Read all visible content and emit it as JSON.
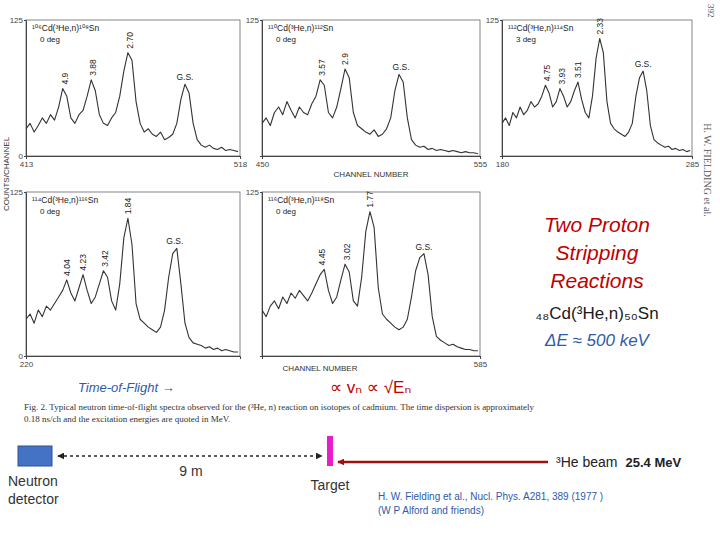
{
  "chart_data": [
    {
      "type": "line",
      "title": "¹⁰⁶Cd(³He,n)¹⁰⁸Sn",
      "subtitle": "0 deg",
      "color": "#333333",
      "x": [
        413,
        415,
        417,
        419,
        421,
        423,
        425,
        427,
        429,
        431,
        433,
        435,
        437,
        439,
        441,
        443,
        445,
        447,
        449,
        451,
        453,
        455,
        457,
        459,
        461,
        463,
        465,
        467,
        469,
        471,
        473,
        475,
        477,
        479,
        481,
        483,
        485,
        487,
        489,
        491,
        493,
        495,
        497,
        499,
        501,
        503,
        505,
        507,
        509,
        511,
        513,
        515,
        517
      ],
      "values": [
        25,
        30,
        22,
        28,
        35,
        30,
        38,
        33,
        45,
        62,
        55,
        35,
        30,
        38,
        42,
        55,
        70,
        60,
        38,
        30,
        28,
        35,
        40,
        55,
        78,
        95,
        88,
        50,
        30,
        22,
        25,
        20,
        18,
        22,
        15,
        17,
        20,
        30,
        52,
        66,
        58,
        30,
        15,
        10,
        8,
        10,
        7,
        6,
        8,
        5,
        6,
        5,
        4
      ],
      "xlim": [
        413,
        518
      ],
      "xticks": [
        413,
        518
      ],
      "ylim": [
        0,
        125
      ],
      "yticks": [
        0,
        125
      ],
      "annotations": [
        {
          "x": 432,
          "text": "4.9"
        },
        {
          "x": 446,
          "text": "3.88"
        },
        {
          "x": 464,
          "text": "2.70"
        },
        {
          "x": 491,
          "text": "G.S."
        }
      ]
    },
    {
      "type": "line",
      "title": "¹¹⁰Cd(³He,n)¹¹²Sn",
      "subtitle": "0 deg",
      "color": "#333333",
      "x": [
        450,
        452,
        454,
        456,
        458,
        460,
        462,
        464,
        466,
        468,
        470,
        472,
        474,
        476,
        478,
        480,
        482,
        484,
        486,
        488,
        490,
        492,
        494,
        496,
        498,
        500,
        502,
        504,
        506,
        508,
        510,
        512,
        514,
        516,
        518,
        520,
        522,
        524,
        526,
        528,
        530,
        532,
        534,
        536,
        538,
        540,
        542,
        544,
        546,
        548,
        550,
        552,
        554
      ],
      "values": [
        30,
        35,
        28,
        40,
        45,
        38,
        50,
        42,
        35,
        45,
        40,
        38,
        48,
        55,
        70,
        65,
        40,
        35,
        45,
        62,
        80,
        72,
        40,
        28,
        25,
        22,
        20,
        24,
        18,
        20,
        25,
        35,
        60,
        75,
        68,
        35,
        15,
        10,
        8,
        9,
        6,
        7,
        5,
        6,
        5,
        4,
        5,
        4,
        3,
        4,
        3,
        3,
        2
      ],
      "xlim": [
        450,
        555
      ],
      "xticks": [
        450,
        555
      ],
      "ylim": [
        0,
        125
      ],
      "yticks": [
        125
      ],
      "annotations": [
        {
          "x": 479,
          "text": "3.57"
        },
        {
          "x": 490,
          "text": "2.9"
        },
        {
          "x": 517,
          "text": "G.S."
        }
      ]
    },
    {
      "type": "line",
      "title": "¹¹²Cd(³He,n)¹¹⁴Sn",
      "subtitle": "3 deg",
      "color": "#333333",
      "x": [
        180,
        182,
        184,
        186,
        188,
        190,
        192,
        194,
        196,
        198,
        200,
        202,
        204,
        206,
        208,
        210,
        212,
        214,
        216,
        218,
        220,
        222,
        224,
        226,
        228,
        230,
        232,
        234,
        236,
        238,
        240,
        242,
        244,
        246,
        248,
        250,
        252,
        254,
        256,
        258,
        260,
        262,
        264,
        266,
        268,
        270,
        272,
        274,
        276,
        278,
        280,
        282,
        284
      ],
      "values": [
        30,
        35,
        28,
        40,
        35,
        45,
        38,
        42,
        50,
        45,
        48,
        55,
        65,
        58,
        45,
        50,
        62,
        55,
        45,
        50,
        60,
        68,
        52,
        40,
        35,
        55,
        90,
        108,
        95,
        50,
        30,
        25,
        22,
        20,
        18,
        22,
        30,
        55,
        72,
        78,
        60,
        28,
        15,
        12,
        10,
        8,
        9,
        6,
        7,
        5,
        6,
        4,
        5
      ],
      "xlim": [
        180,
        285
      ],
      "xticks": [
        180,
        285
      ],
      "ylim": [
        0,
        125
      ],
      "yticks": [
        125
      ],
      "annotations": [
        {
          "x": 205,
          "text": "4.75"
        },
        {
          "x": 213,
          "text": "3.93"
        },
        {
          "x": 222,
          "text": "3.51"
        },
        {
          "x": 234,
          "text": "2.33"
        },
        {
          "x": 258,
          "text": "G.S."
        }
      ]
    },
    {
      "type": "line",
      "title": "¹¹⁴Cd(³He,n)¹¹⁶Sn",
      "subtitle": "0 deg",
      "color": "#333333",
      "x": [
        220,
        222,
        224,
        226,
        228,
        230,
        232,
        234,
        236,
        238,
        240,
        242,
        244,
        246,
        248,
        250,
        252,
        254,
        256,
        258,
        260,
        262,
        264,
        266,
        268,
        270,
        272,
        274,
        276,
        278,
        280,
        282,
        284,
        286,
        288,
        290,
        292,
        294,
        296,
        298,
        300,
        302,
        304,
        306,
        308,
        310,
        312,
        314,
        316,
        318,
        320,
        322,
        324
      ],
      "values": [
        28,
        32,
        25,
        35,
        30,
        38,
        35,
        40,
        45,
        50,
        58,
        48,
        42,
        52,
        62,
        50,
        40,
        45,
        55,
        65,
        60,
        42,
        35,
        55,
        90,
        105,
        85,
        40,
        28,
        25,
        22,
        20,
        18,
        22,
        35,
        60,
        78,
        82,
        55,
        25,
        14,
        10,
        9,
        8,
        6,
        7,
        5,
        6,
        4,
        5,
        4,
        3,
        3
      ],
      "xlim": [
        220,
        325
      ],
      "xticks": [
        220
      ],
      "ylim": [
        0,
        125
      ],
      "yticks": [
        0,
        125
      ],
      "annotations": [
        {
          "x": 240,
          "text": "4.04"
        },
        {
          "x": 248,
          "text": "4.23"
        },
        {
          "x": 259,
          "text": "3.42"
        },
        {
          "x": 270,
          "text": "1.84"
        },
        {
          "x": 293,
          "text": "G.S."
        }
      ]
    },
    {
      "type": "line",
      "title": "¹¹⁶Cd(³He,n)¹¹⁸Sn",
      "subtitle": "0 deg",
      "color": "#333333",
      "x": [
        480,
        482,
        484,
        486,
        488,
        490,
        492,
        494,
        496,
        498,
        500,
        502,
        504,
        506,
        508,
        510,
        512,
        514,
        516,
        518,
        520,
        522,
        524,
        526,
        528,
        530,
        532,
        534,
        536,
        538,
        540,
        542,
        544,
        546,
        548,
        550,
        552,
        554,
        556,
        558,
        560,
        562,
        564,
        566,
        568,
        570,
        572,
        574,
        576,
        578,
        580,
        582,
        584
      ],
      "values": [
        35,
        30,
        38,
        42,
        36,
        45,
        40,
        48,
        44,
        50,
        46,
        42,
        48,
        55,
        62,
        66,
        50,
        40,
        45,
        58,
        70,
        64,
        42,
        38,
        60,
        95,
        110,
        98,
        52,
        32,
        28,
        25,
        22,
        20,
        22,
        28,
        45,
        65,
        75,
        78,
        62,
        30,
        15,
        12,
        10,
        8,
        9,
        7,
        6,
        5,
        5,
        4,
        4
      ],
      "xlim": [
        480,
        585
      ],
      "xticks": [
        585
      ],
      "ylim": [
        0,
        125
      ],
      "yticks": [
        125
      ],
      "annotations": [
        {
          "x": 509,
          "text": "4.45"
        },
        {
          "x": 521,
          "text": "3.02"
        },
        {
          "x": 532,
          "text": "1.77"
        },
        {
          "x": 558,
          "text": "G.S."
        }
      ]
    }
  ],
  "figure": {
    "y_label": "COUNTS/CHANNEL",
    "x_label": "CHANNEL NUMBER",
    "side_credit": "H. W. FIELDING et al.",
    "page_number": "392",
    "caption": [
      "Fig. 2. Typical neutron time-of-flight spectra observed for the (³He, n) reaction on isotopes of cadmium. The time dispersion is approximately",
      "0.18 ns/ch and the excitation energies are quoted in MeV."
    ]
  },
  "slide": {
    "headline": [
      "Two Proton",
      "Stripping",
      "Reactions"
    ],
    "reaction": "₄₈Cd(³He,n)₅₀Sn",
    "resolution": "ΔE ≈ 500 keV",
    "tof_label": "Time-of-Flight →",
    "proportionality": "∝ vₙ ∝ √Eₙ",
    "credits": [
      "H. W. Fielding et al., Nucl. Phys. A281, 389 (1977 )",
      "(W P Alford and friends)"
    ]
  },
  "diagram": {
    "detector_label": [
      "Neutron",
      "detector"
    ],
    "distance": "9 m",
    "target": "Target",
    "beam": "³He beam",
    "beam_energy": "25.4 MeV"
  }
}
